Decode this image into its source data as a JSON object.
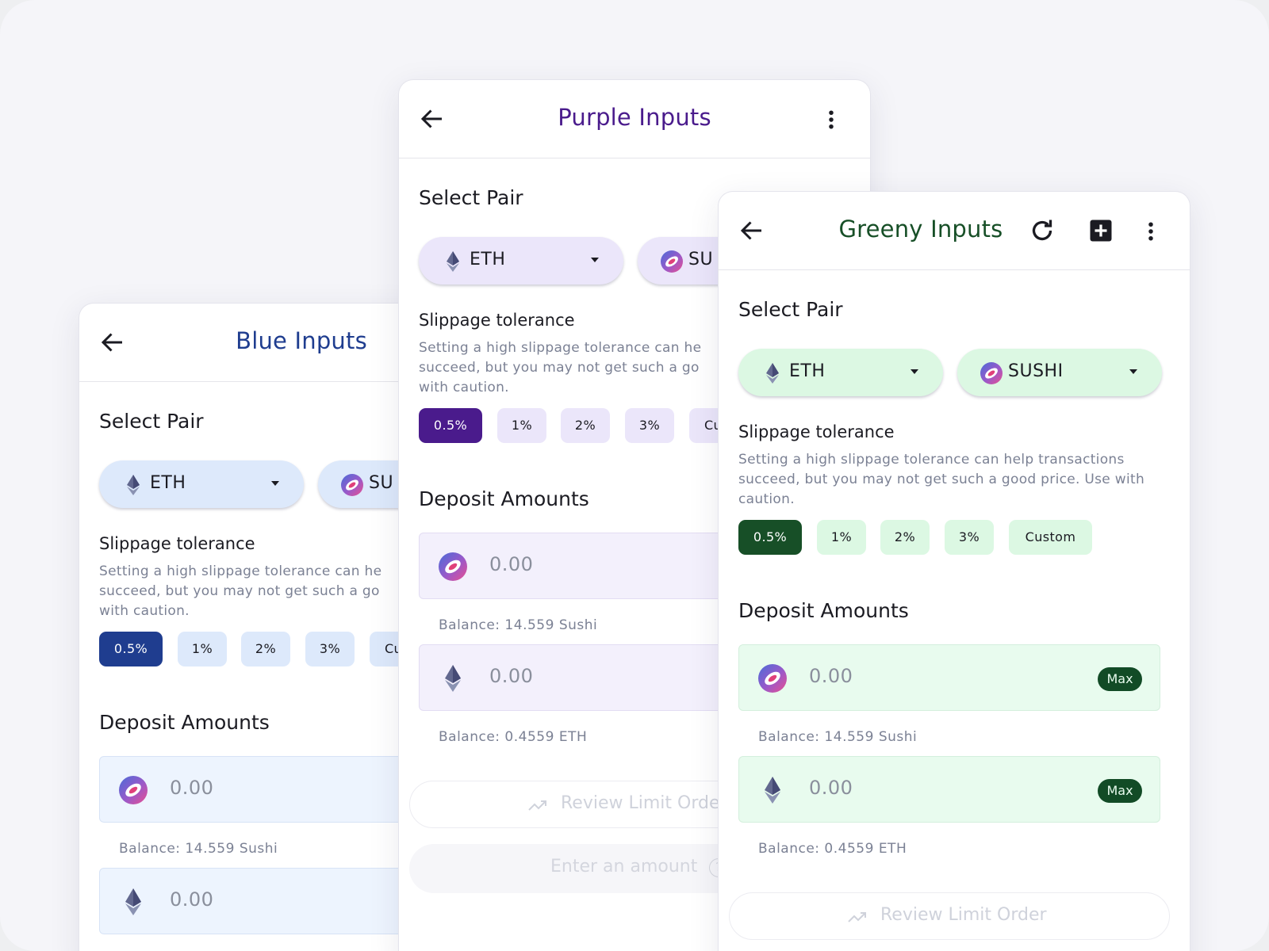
{
  "panels": {
    "blue": {
      "title": "Blue Inputs",
      "select_pair": "Select Pair",
      "token_a": "ETH",
      "token_b": "SU",
      "slippage_title": "Slippage tolerance",
      "slippage_desc": "Setting a high slippage tolerance can he succeed, but you may not get such a go with caution.",
      "chips": [
        "0.5%",
        "1%",
        "2%",
        "3%",
        "Cu"
      ],
      "deposit_title": "Deposit Amounts",
      "amount_a": "0.00",
      "balance_a": "Balance: 14.559 Sushi",
      "amount_b": "0.00",
      "colors": {
        "title": "#1f3d8f",
        "pill": "#dde9fb",
        "chip": "#dde9fb",
        "chip_active": "#1f3d8f",
        "field_bg": "#edf4fe",
        "field_border": "#d7e3f6"
      }
    },
    "purple": {
      "title": "Purple Inputs",
      "select_pair": "Select Pair",
      "token_a": "ETH",
      "token_b": "SU",
      "slippage_title": "Slippage tolerance",
      "slippage_desc": "Setting a high slippage tolerance can he succeed, but you may not get such a go with caution.",
      "chips": [
        "0.5%",
        "1%",
        "2%",
        "3%",
        "Cu"
      ],
      "deposit_title": "Deposit Amounts",
      "amount_a": "0.00",
      "balance_a": "Balance: 14.559 Sushi",
      "amount_b": "0.00",
      "balance_b": "Balance: 0.4559 ETH",
      "review_label": "Review Limit Orde",
      "enter_amount": "Enter an amount",
      "colors": {
        "title": "#4a1b8c",
        "pill": "#ebe6fa",
        "chip": "#ebe6fa",
        "chip_active": "#4a1b8c",
        "field_bg": "#f3f0fc",
        "field_border": "#e2dcf3"
      }
    },
    "green": {
      "title": "Greeny Inputs",
      "select_pair": "Select Pair",
      "token_a": "ETH",
      "token_b": "SUSHI",
      "slippage_title": "Slippage tolerance",
      "slippage_desc": "Setting a high slippage tolerance can help transactions succeed, but you may not get such a good price. Use with caution.",
      "chips": [
        "0.5%",
        "1%",
        "2%",
        "3%",
        "Custom"
      ],
      "deposit_title": "Deposit Amounts",
      "amount_a": "0.00",
      "balance_a": "Balance: 14.559 Sushi",
      "amount_b": "0.00",
      "balance_b": "Balance: 0.4559 ETH",
      "max_label": "Max",
      "review_label": "Review Limit Order",
      "colors": {
        "title": "#174f27",
        "pill": "#dcf8e3",
        "chip": "#dcf8e3",
        "chip_active": "#174f27",
        "field_bg": "#e8fbee",
        "field_border": "#d4efdd"
      }
    }
  },
  "icons": [
    "back-arrow-icon",
    "more-vertical-icon",
    "refresh-icon",
    "add-box-icon",
    "eth-icon",
    "sushi-icon",
    "chevron-down-icon",
    "trend-icon",
    "help-icon"
  ]
}
